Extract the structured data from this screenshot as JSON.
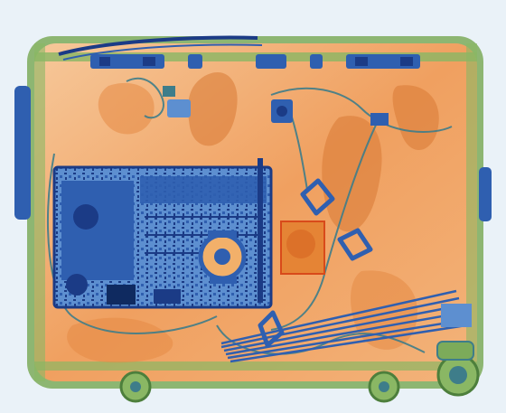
{
  "scan": {
    "kind": "x-ray baggage scan",
    "subject": "suitcase",
    "colors": {
      "background": "#eaf2f8",
      "organic": "#f0a060",
      "organic_light": "#f6c89a",
      "organic_dark": "#d97a35",
      "inorganic": "#7cab5a",
      "metal": "#2f5fb0",
      "metal_dark": "#1b3b86",
      "metal_light": "#5d8fd0",
      "threat_box": "#d84a1a"
    },
    "items": [
      {
        "name": "suitcase-shell",
        "material": "inorganic"
      },
      {
        "name": "top-handle",
        "material": "metal"
      },
      {
        "name": "top-clasps",
        "material": "metal"
      },
      {
        "name": "circuit-board-device",
        "material": "metal"
      },
      {
        "name": "spool-component",
        "material": "metal"
      },
      {
        "name": "dense-block-marked",
        "material": "organic"
      },
      {
        "name": "wire-bundle",
        "material": "metal"
      },
      {
        "name": "small-electronic-module",
        "material": "metal"
      },
      {
        "name": "cables",
        "material": "inorganic"
      },
      {
        "name": "wheels",
        "material": "inorganic"
      },
      {
        "name": "clothing-folds",
        "material": "organic"
      }
    ]
  }
}
